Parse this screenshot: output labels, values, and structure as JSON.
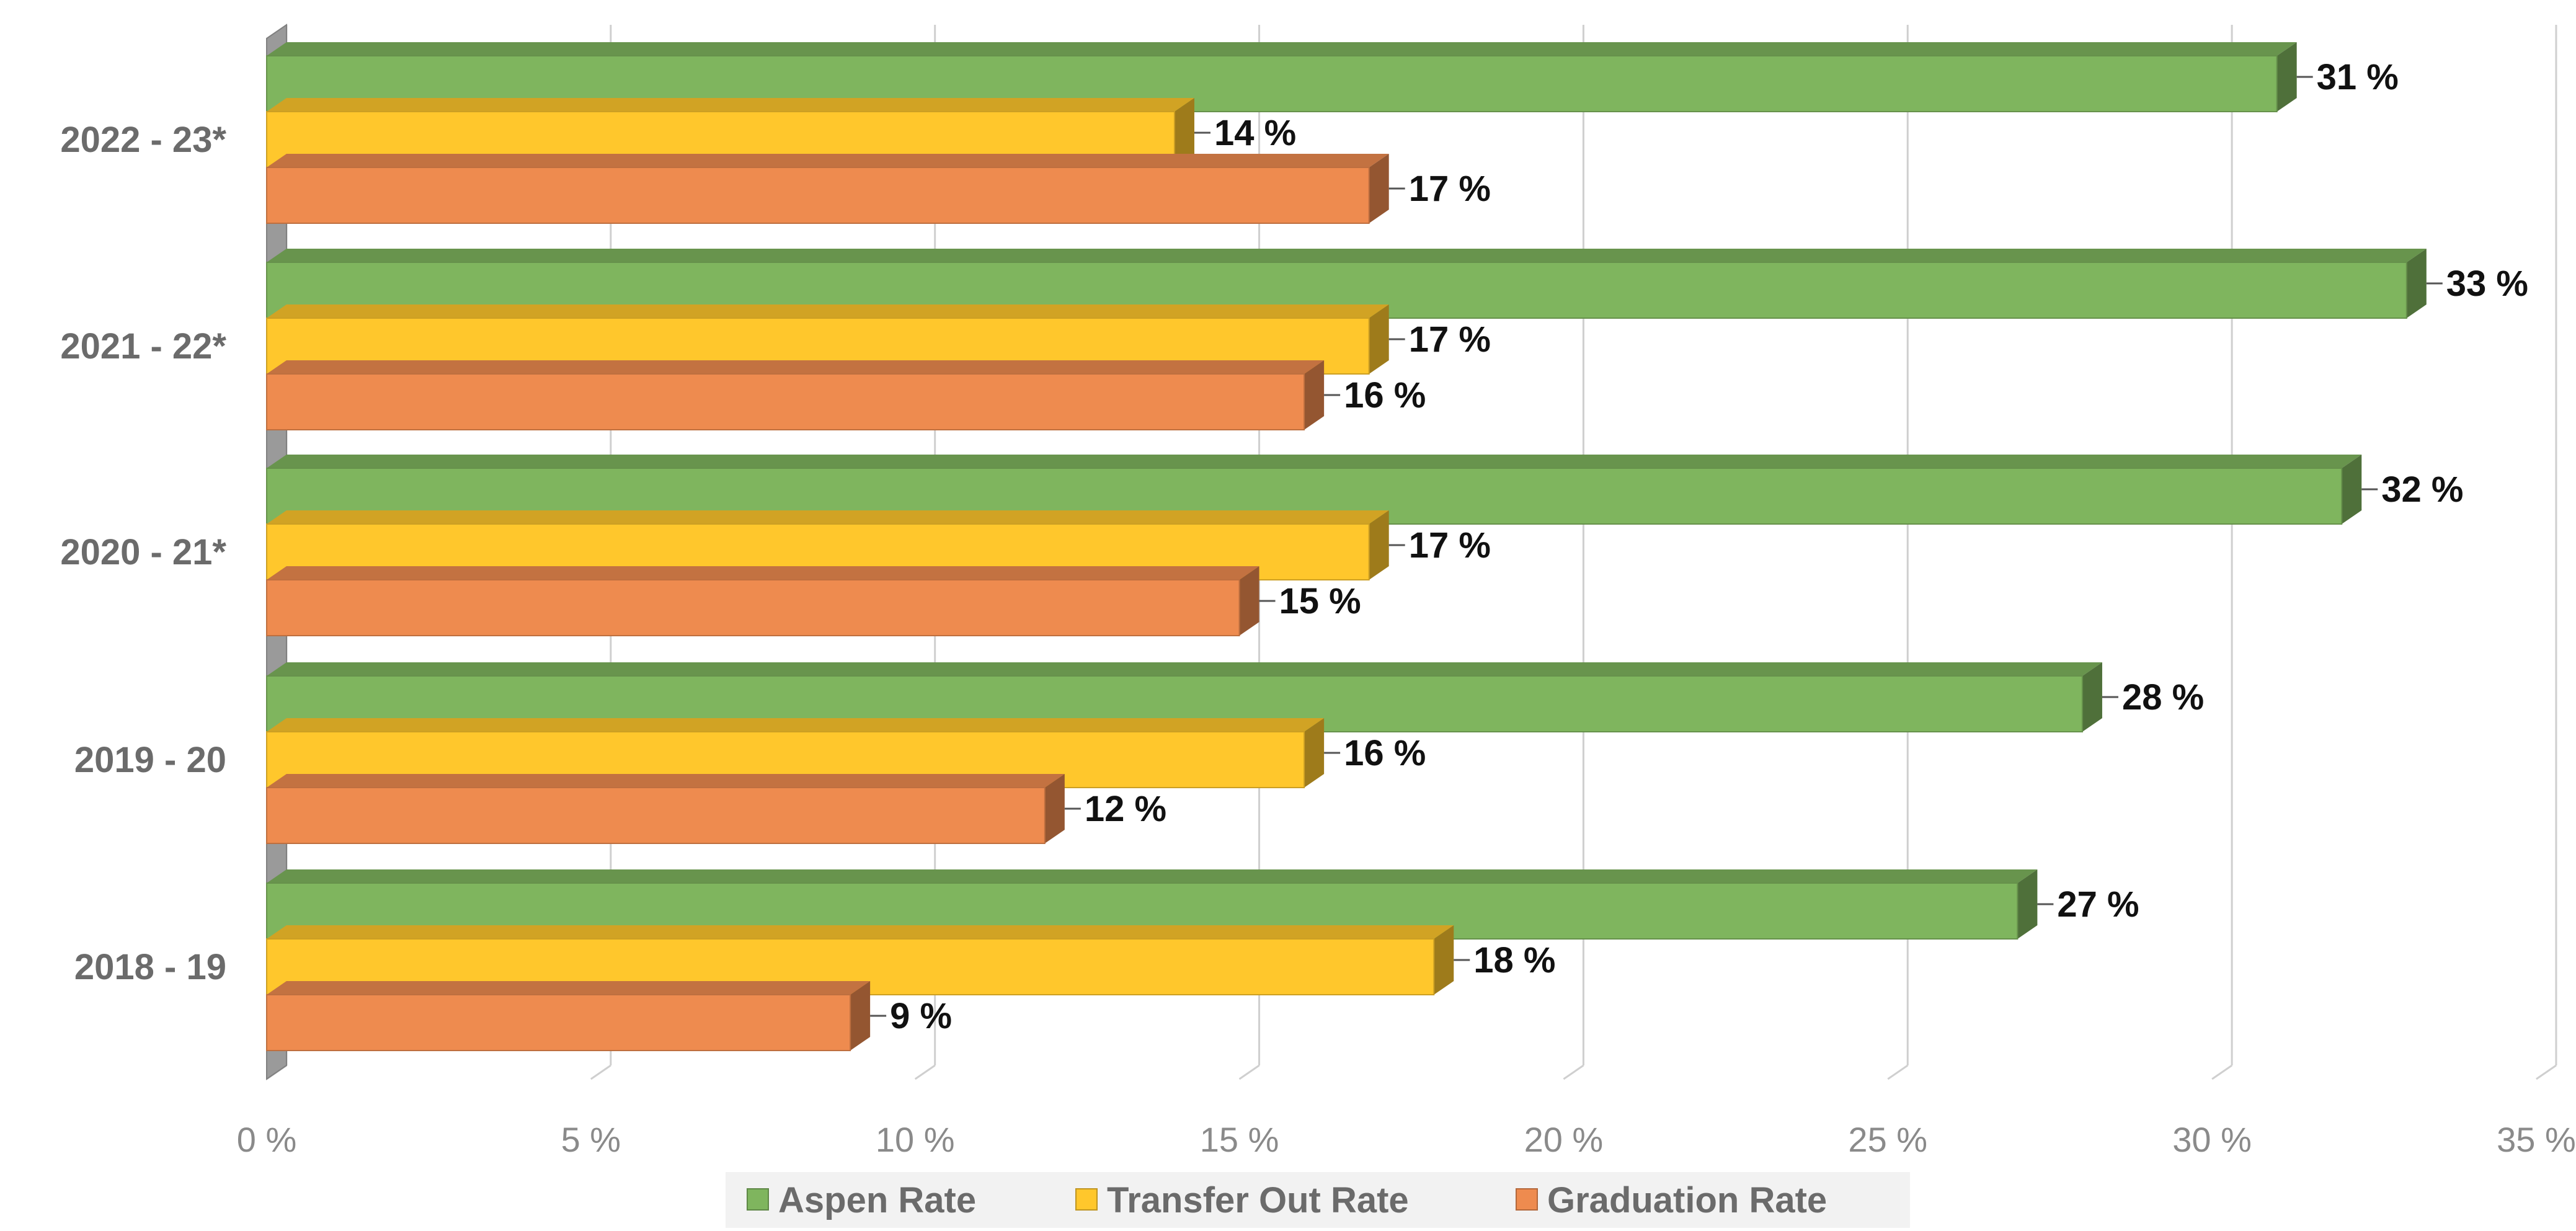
{
  "chart_data": {
    "type": "bar",
    "orientation": "horizontal",
    "style": "3d",
    "categories": [
      "2018 - 19",
      "2019 - 20",
      "2020 - 21*",
      "2021 - 22*",
      "2022 - 23*"
    ],
    "series": [
      {
        "name": "Aspen Rate",
        "color": "#7fb55e",
        "values": [
          27,
          28,
          32,
          33,
          31
        ],
        "labels": [
          "27 %",
          "28 %",
          "32 %",
          "33 %",
          "31 %"
        ]
      },
      {
        "name": "Transfer Out Rate",
        "color": "#ffc72c",
        "values": [
          18,
          16,
          17,
          17,
          14
        ],
        "labels": [
          "18 %",
          "16 %",
          "17 %",
          "17 %",
          "14 %"
        ]
      },
      {
        "name": "Graduation Rate",
        "color": "#ee8b4f",
        "values": [
          9,
          12,
          15,
          16,
          17
        ],
        "labels": [
          "9 %",
          "12 %",
          "15 %",
          "16 %",
          "17 %"
        ]
      }
    ],
    "xlim": [
      0,
      35
    ],
    "xticks": [
      0,
      5,
      10,
      15,
      20,
      25,
      30,
      35
    ],
    "xtick_labels": [
      "0 %",
      "5 %",
      "10 %",
      "15 %",
      "20 %",
      "25 %",
      "30 %",
      "35 %"
    ],
    "grid": "vertical",
    "legend_position": "bottom",
    "title": "",
    "xlabel": "",
    "ylabel": ""
  }
}
